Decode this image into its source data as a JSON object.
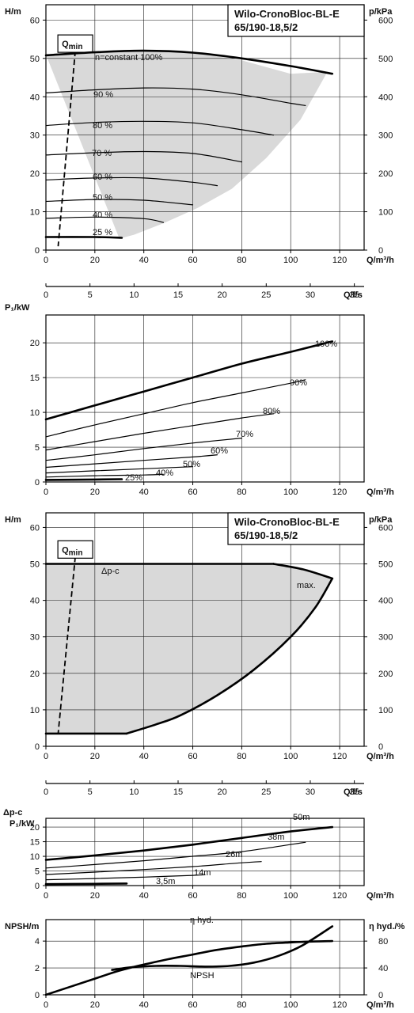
{
  "chart_data": [
    {
      "id": "h-q-percent",
      "type": "line",
      "title": "Wilo-CronoBloc-BL-E",
      "subtitle": "65/190-18,5/2",
      "ylabel": "H/m",
      "ylabel_right": "p/kPa",
      "xlabel": "Q/m³/h",
      "xlabel_secondary": "Q/l/s",
      "xlim": [
        0,
        130
      ],
      "ylim": [
        0,
        64
      ],
      "ylim_right": [
        0,
        640
      ],
      "xticks": [
        0,
        20,
        40,
        60,
        80,
        100,
        120
      ],
      "yticks": [
        0,
        10,
        20,
        30,
        40,
        50,
        60
      ],
      "yticks_right": [
        0,
        100,
        200,
        300,
        400,
        500,
        600
      ],
      "xticks_secondary": [
        0,
        5,
        10,
        15,
        20,
        25,
        30,
        35
      ],
      "grid": true,
      "qmin_label": "Q",
      "qmin_sub": "min",
      "qmin_line": [
        [
          12,
          52
        ],
        [
          5,
          1
        ]
      ],
      "envelope": [
        [
          0,
          51
        ],
        [
          20,
          51.8
        ],
        [
          40,
          52.3
        ],
        [
          60,
          51.5
        ],
        [
          80,
          49.5
        ],
        [
          100,
          46
        ],
        [
          115,
          46.5
        ],
        [
          104,
          34
        ],
        [
          90,
          24
        ],
        [
          76,
          16
        ],
        [
          62,
          11
        ],
        [
          48,
          7
        ],
        [
          36,
          4
        ],
        [
          30,
          3
        ]
      ],
      "series": [
        {
          "name": "n=constant 100%",
          "width": 2.6,
          "x": [
            0,
            20,
            40,
            60,
            80,
            100,
            117
          ],
          "y": [
            50.8,
            51.6,
            52,
            51.5,
            50,
            48,
            46
          ]
        },
        {
          "name": "90 %",
          "width": 1.2,
          "x": [
            0,
            20,
            40,
            60,
            80,
            100,
            106
          ],
          "y": [
            41,
            41.8,
            42.3,
            42,
            40.5,
            38.3,
            37.7
          ]
        },
        {
          "name": "80 %",
          "width": 1.2,
          "x": [
            0,
            20,
            40,
            60,
            80,
            93
          ],
          "y": [
            32.5,
            33.3,
            33.6,
            33.2,
            31.4,
            30
          ]
        },
        {
          "name": "70 %",
          "width": 1.2,
          "x": [
            0,
            20,
            40,
            60,
            80
          ],
          "y": [
            24.8,
            25.4,
            25.7,
            25.2,
            23
          ]
        },
        {
          "name": "60 %",
          "width": 1.2,
          "x": [
            0,
            20,
            40,
            60,
            70
          ],
          "y": [
            18.3,
            18.8,
            18.8,
            17.7,
            16.8
          ]
        },
        {
          "name": "50 %",
          "width": 1.2,
          "x": [
            0,
            20,
            40,
            60
          ],
          "y": [
            12.7,
            13.2,
            13,
            11.8
          ]
        },
        {
          "name": "40 %",
          "width": 1.2,
          "x": [
            0,
            20,
            40,
            48
          ],
          "y": [
            8.3,
            8.6,
            8.2,
            7.2
          ]
        },
        {
          "name": "25 %",
          "width": 2.6,
          "x": [
            0,
            20,
            31
          ],
          "y": [
            3.4,
            3.4,
            3.2
          ]
        }
      ]
    },
    {
      "id": "p1-q-percent",
      "type": "line",
      "ylabel": "P₁/kW",
      "xlabel": "Q/m³/h",
      "xlim": [
        0,
        130
      ],
      "ylim": [
        0,
        24
      ],
      "xticks": [
        0,
        20,
        40,
        60,
        80,
        100,
        120
      ],
      "yticks": [
        0,
        5,
        10,
        15,
        20
      ],
      "grid": true,
      "series": [
        {
          "name": "100%",
          "width": 2.6,
          "x": [
            0,
            20,
            40,
            60,
            80,
            100,
            117
          ],
          "y": [
            9,
            11,
            13,
            15,
            17,
            18.7,
            20.2
          ]
        },
        {
          "name": "90%",
          "width": 1.2,
          "x": [
            0,
            20,
            40,
            60,
            80,
            100,
            106
          ],
          "y": [
            6.5,
            8.2,
            9.8,
            11.4,
            12.8,
            14.2,
            14.7
          ]
        },
        {
          "name": "80%",
          "width": 1.2,
          "x": [
            0,
            20,
            40,
            60,
            80,
            93
          ],
          "y": [
            4.6,
            5.8,
            7,
            8.1,
            9.2,
            9.8
          ]
        },
        {
          "name": "70%",
          "width": 1.2,
          "x": [
            0,
            20,
            40,
            60,
            80
          ],
          "y": [
            3.1,
            3.9,
            4.8,
            5.6,
            6.3
          ]
        },
        {
          "name": "60%",
          "width": 1.2,
          "x": [
            0,
            20,
            40,
            60,
            70
          ],
          "y": [
            2.1,
            2.6,
            3.1,
            3.6,
            3.9
          ]
        },
        {
          "name": "50%",
          "width": 1.2,
          "x": [
            0,
            20,
            40,
            60
          ],
          "y": [
            1.3,
            1.6,
            1.9,
            2.2
          ]
        },
        {
          "name": "40%",
          "width": 1.2,
          "x": [
            0,
            20,
            40,
            48
          ],
          "y": [
            0.7,
            0.9,
            1.0,
            1.1
          ]
        },
        {
          "name": "25%",
          "width": 2.6,
          "x": [
            0,
            20,
            31
          ],
          "y": [
            0.3,
            0.35,
            0.4
          ]
        }
      ]
    },
    {
      "id": "h-q-dpc",
      "type": "area",
      "title": "Wilo-CronoBloc-BL-E",
      "subtitle": "65/190-18,5/2",
      "ylabel": "H/m",
      "ylabel_right": "p/kPa",
      "xlabel": "Q/m³/h",
      "xlabel_secondary": "Q/l/s",
      "xlim": [
        0,
        130
      ],
      "ylim": [
        0,
        64
      ],
      "ylim_right": [
        0,
        640
      ],
      "xticks": [
        0,
        20,
        40,
        60,
        80,
        100,
        120
      ],
      "yticks": [
        0,
        10,
        20,
        30,
        40,
        50,
        60
      ],
      "yticks_right": [
        0,
        100,
        200,
        300,
        400,
        500,
        600
      ],
      "xticks_secondary": [
        0,
        5,
        10,
        15,
        20,
        25,
        30,
        35
      ],
      "grid": true,
      "qmin_label": "Q",
      "qmin_sub": "min",
      "qmin_line": [
        [
          12,
          52
        ],
        [
          5,
          3.5
        ]
      ],
      "envelope": [
        [
          0,
          50
        ],
        [
          93,
          50
        ],
        [
          105,
          48.5
        ],
        [
          117,
          46
        ],
        [
          110,
          38
        ],
        [
          100,
          30
        ],
        [
          85,
          21
        ],
        [
          70,
          14
        ],
        [
          55,
          8.5
        ],
        [
          45,
          6
        ],
        [
          33,
          3.5
        ],
        [
          0,
          3.5
        ]
      ],
      "series": [
        {
          "name": "Δp-c",
          "width": 2.6,
          "x": [
            0,
            20,
            40,
            60,
            80,
            93
          ],
          "y": [
            50,
            50,
            50,
            50,
            50,
            50
          ]
        },
        {
          "name": "max.",
          "width": 2.6,
          "x": [
            93,
            105,
            117
          ],
          "y": [
            50,
            48.5,
            46
          ]
        },
        {
          "name": "",
          "width": 2.6,
          "x": [
            33,
            45,
            55,
            70,
            85,
            100,
            110,
            117
          ],
          "y": [
            3.5,
            6,
            8.5,
            14,
            21,
            30,
            38,
            46
          ]
        },
        {
          "name": "",
          "width": 2.6,
          "x": [
            0,
            33
          ],
          "y": [
            3.5,
            3.5
          ]
        }
      ]
    },
    {
      "id": "p1-q-dpc",
      "type": "line",
      "ylabel": "Δp-c",
      "ylabel2": "P₁/kW",
      "xlabel": "Q/m³/h",
      "xlim": [
        0,
        130
      ],
      "ylim": [
        0,
        23
      ],
      "xticks": [
        0,
        20,
        40,
        60,
        80,
        100,
        120
      ],
      "yticks": [
        0,
        5,
        10,
        15,
        20
      ],
      "grid": true,
      "series": [
        {
          "name": "50m",
          "width": 2.6,
          "x": [
            0,
            20,
            40,
            60,
            80,
            100,
            117
          ],
          "y": [
            8.8,
            10.3,
            12,
            14,
            16.3,
            18.5,
            20
          ]
        },
        {
          "name": "38m",
          "width": 1.2,
          "x": [
            0,
            20,
            40,
            60,
            80,
            106
          ],
          "y": [
            6,
            7.2,
            8.5,
            10,
            11.6,
            14.8
          ]
        },
        {
          "name": "26m",
          "width": 1.2,
          "x": [
            0,
            20,
            40,
            60,
            80,
            88
          ],
          "y": [
            3.8,
            4.6,
            5.5,
            6.5,
            7.8,
            8.2
          ]
        },
        {
          "name": "14m",
          "width": 1.2,
          "x": [
            0,
            20,
            40,
            60,
            65
          ],
          "y": [
            2,
            2.4,
            2.9,
            3.5,
            3.7
          ]
        },
        {
          "name": "3,5m",
          "width": 2.6,
          "x": [
            0,
            20,
            33
          ],
          "y": [
            0.5,
            0.6,
            0.7
          ]
        }
      ]
    },
    {
      "id": "npsh-eta",
      "type": "line",
      "ylabel": "NPSH/m",
      "ylabel_right": "η hyd./%",
      "xlabel": "Q/m³/h",
      "xlim": [
        0,
        130
      ],
      "ylim": [
        0,
        5.6
      ],
      "ylim_right": [
        0,
        112
      ],
      "xticks": [
        0,
        20,
        40,
        60,
        80,
        100,
        120
      ],
      "yticks": [
        0,
        2,
        4
      ],
      "yticks_right": [
        0,
        40,
        80
      ],
      "grid": true,
      "series": [
        {
          "name": "η hyd.",
          "axis": "right",
          "width": 2.6,
          "x": [
            0,
            10,
            20,
            30,
            40,
            50,
            60,
            70,
            80,
            90,
            100,
            110,
            117
          ],
          "y": [
            0,
            12,
            24,
            36,
            45,
            53,
            60,
            67,
            72,
            76,
            78,
            79.5,
            80
          ]
        },
        {
          "name": "NPSH",
          "axis": "left",
          "width": 2.6,
          "x": [
            27,
            35,
            45,
            55,
            65,
            75,
            85,
            95,
            105,
            117
          ],
          "y": [
            1.85,
            2.05,
            2.15,
            2.15,
            2.1,
            2.15,
            2.4,
            2.9,
            3.7,
            5.1
          ]
        }
      ]
    }
  ]
}
